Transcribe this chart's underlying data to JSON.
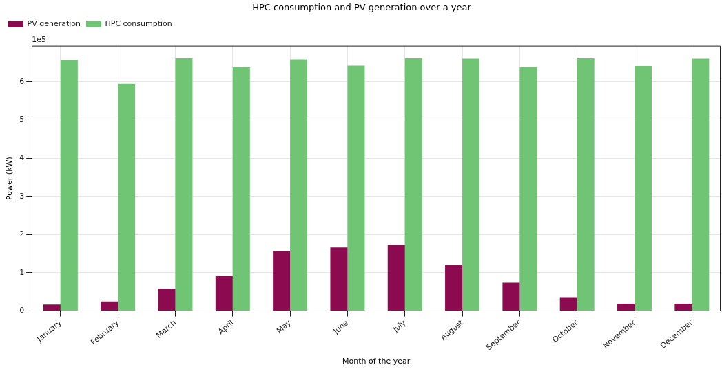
{
  "chart_data": {
    "type": "bar",
    "title": "HPC consumption and PV generation over a year",
    "xlabel": "Month of the year",
    "ylabel": "Power (kW)",
    "categories": [
      "January",
      "February",
      "March",
      "April",
      "May",
      "June",
      "July",
      "August",
      "September",
      "October",
      "November",
      "December"
    ],
    "series": [
      {
        "name": "PV generation",
        "color": "#8b0a50",
        "values": [
          0.17,
          0.25,
          0.58,
          0.93,
          1.57,
          1.66,
          1.73,
          1.21,
          0.74,
          0.36,
          0.19,
          0.19
        ]
      },
      {
        "name": "HPC consumption",
        "color": "#6fc573",
        "values": [
          6.57,
          5.95,
          6.61,
          6.38,
          6.58,
          6.42,
          6.61,
          6.6,
          6.38,
          6.61,
          6.41,
          6.6
        ]
      }
    ],
    "ylim": [
      0,
      6.94
    ],
    "yticks": [
      0,
      1,
      2,
      3,
      4,
      5,
      6
    ],
    "annotations": [
      "1e5"
    ],
    "grid": true,
    "legend": "top left"
  }
}
